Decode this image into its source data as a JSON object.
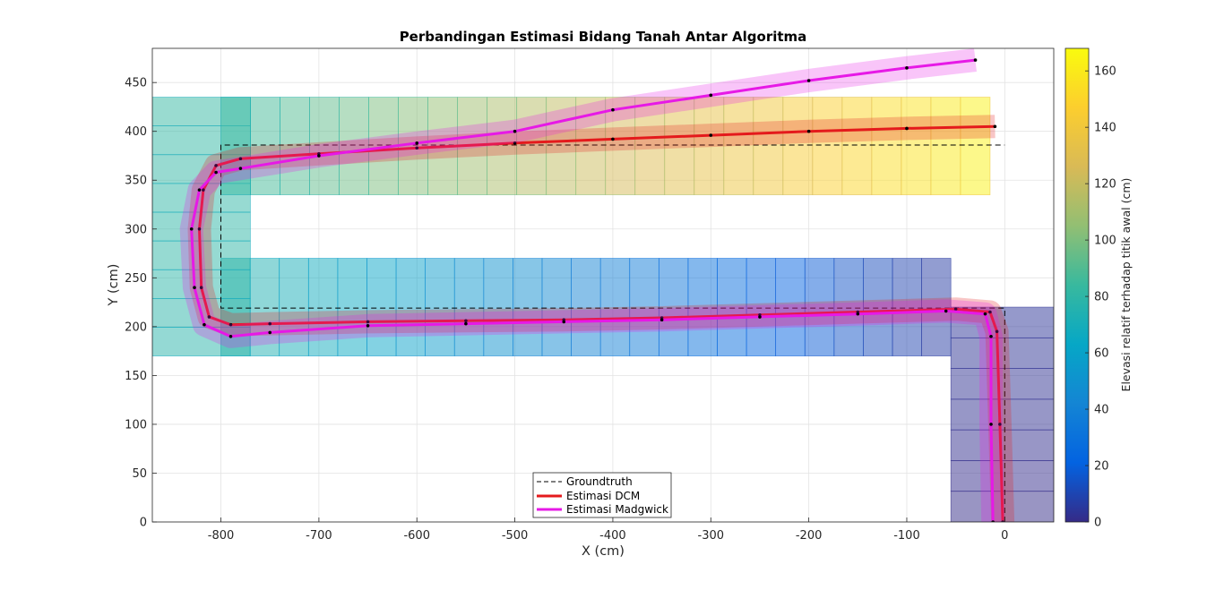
{
  "chart_data": {
    "type": "line",
    "title": "Perbandingan Estimasi Bidang Tanah Antar Algoritma",
    "xlabel": "X (cm)",
    "ylabel": "Y (cm)",
    "xlim": [
      -870,
      50
    ],
    "ylim": [
      0,
      485
    ],
    "xticks": [
      -800,
      -700,
      -600,
      -500,
      -400,
      -300,
      -200,
      -100,
      0
    ],
    "yticks": [
      0,
      50,
      100,
      150,
      200,
      250,
      300,
      350,
      400,
      450
    ],
    "grid": true,
    "legend": {
      "placement": "bottom-center",
      "entries": [
        "Groundtruth",
        "Estimasi DCM",
        "Estimasi Madgwick"
      ]
    },
    "colorbar": {
      "label": "Elevasi relatif terhadap titik awal (cm)",
      "range": [
        0,
        168
      ],
      "ticks": [
        0,
        20,
        40,
        60,
        80,
        100,
        120,
        140,
        160
      ],
      "colormap": "parula"
    },
    "series": [
      {
        "name": "Groundtruth",
        "style": "dashed",
        "color": "#000000",
        "points": [
          [
            0,
            0
          ],
          [
            0,
            219
          ],
          [
            -800,
            219
          ],
          [
            -800,
            386
          ],
          [
            0,
            386
          ]
        ]
      },
      {
        "name": "Estimasi DCM",
        "style": "solid",
        "color": "#e41a1c",
        "points": [
          [
            -2,
            0
          ],
          [
            -5,
            100
          ],
          [
            -8,
            195
          ],
          [
            -15,
            215
          ],
          [
            -50,
            218
          ],
          [
            -150,
            215
          ],
          [
            -250,
            212
          ],
          [
            -350,
            209
          ],
          [
            -450,
            207
          ],
          [
            -550,
            206
          ],
          [
            -650,
            205
          ],
          [
            -750,
            203
          ],
          [
            -790,
            202
          ],
          [
            -812,
            210
          ],
          [
            -820,
            240
          ],
          [
            -822,
            300
          ],
          [
            -818,
            340
          ],
          [
            -805,
            365
          ],
          [
            -780,
            372
          ],
          [
            -700,
            377
          ],
          [
            -600,
            383
          ],
          [
            -500,
            388
          ],
          [
            -400,
            392
          ],
          [
            -300,
            396
          ],
          [
            -200,
            400
          ],
          [
            -100,
            403
          ],
          [
            -10,
            405
          ]
        ]
      },
      {
        "name": "Estimasi Madgwick",
        "style": "solid",
        "color": "#e619e6",
        "points": [
          [
            -12,
            0
          ],
          [
            -14,
            100
          ],
          [
            -14,
            190
          ],
          [
            -20,
            213
          ],
          [
            -60,
            216
          ],
          [
            -150,
            213
          ],
          [
            -250,
            210
          ],
          [
            -350,
            207
          ],
          [
            -450,
            205
          ],
          [
            -550,
            203
          ],
          [
            -650,
            201
          ],
          [
            -750,
            194
          ],
          [
            -790,
            190
          ],
          [
            -817,
            202
          ],
          [
            -827,
            240
          ],
          [
            -830,
            300
          ],
          [
            -822,
            340
          ],
          [
            -805,
            358
          ],
          [
            -780,
            362
          ],
          [
            -700,
            375
          ],
          [
            -600,
            388
          ],
          [
            -500,
            400
          ],
          [
            -400,
            422
          ],
          [
            -300,
            437
          ],
          [
            -200,
            452
          ],
          [
            -100,
            465
          ],
          [
            -30,
            473
          ]
        ]
      }
    ],
    "ground_planes": [
      {
        "x_range": [
          -55,
          50
        ],
        "y_range": [
          0,
          220
        ],
        "elevation_range": [
          0,
          4
        ]
      },
      {
        "x_range": [
          -800,
          -55
        ],
        "y_range": [
          170,
          270
        ],
        "elevation_range": [
          5,
          78
        ]
      },
      {
        "x_range": [
          -870,
          -770
        ],
        "y_range": [
          170,
          435
        ],
        "elevation_range": [
          78,
          82
        ]
      },
      {
        "x_range": [
          -800,
          -15
        ],
        "y_range": [
          335,
          435
        ],
        "elevation_range": [
          82,
          165
        ]
      }
    ]
  }
}
